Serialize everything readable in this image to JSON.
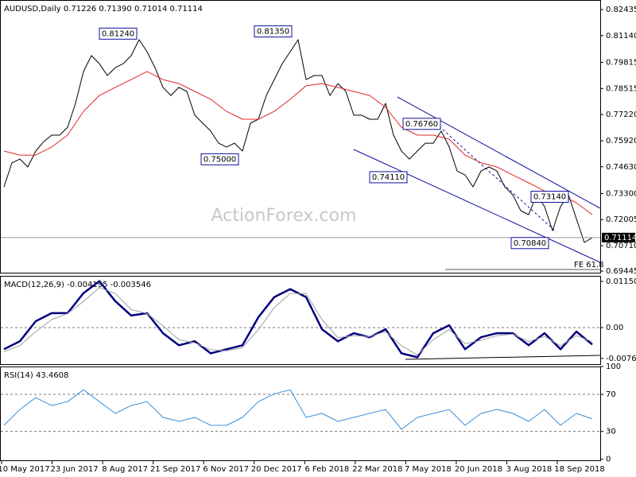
{
  "chart_data": [
    {
      "type": "line",
      "title": "AUDUSD,Daily  0.71226 0.71390 0.71014 0.71114",
      "watermark": "ActionForex.com",
      "ylim": [
        0.6937,
        0.8291
      ],
      "yticks": [
        0.82435,
        {
          "value": 0.8114,
          "label": "0.81140"
        },
        0.79815,
        0.78515,
        {
          "value": 0.7722,
          "label": "0.77220"
        },
        {
          "value": 0.7592,
          "label": "0.75920"
        },
        {
          "value": 0.7463,
          "label": "0.74630"
        },
        {
          "value": 0.733,
          "label": "0.73300"
        },
        0.72005,
        {
          "value": 0.7071,
          "label": "0.70710"
        },
        0.69445
      ],
      "last_price": {
        "value": 0.71114,
        "label": "0.71114"
      },
      "annotations": [
        {
          "value": 0.8124,
          "label": "0.81240"
        },
        {
          "value": 0.8135,
          "label": "0.81350"
        },
        {
          "value": 0.75,
          "label": "0.75000"
        },
        {
          "value": 0.7411,
          "label": "0.74110"
        },
        {
          "value": 0.7676,
          "label": "0.76760"
        },
        {
          "value": 0.7314,
          "label": "0.73140"
        },
        {
          "value": 0.7084,
          "label": "0.70840"
        }
      ],
      "note": "FE 61.8",
      "series": [
        {
          "name": "AUDUSD",
          "color": "#000000",
          "values": [
            0.7363,
            0.7482,
            0.7501,
            0.7462,
            0.7541,
            0.7588,
            0.762,
            0.762,
            0.7659,
            0.7778,
            0.7936,
            0.8015,
            0.7975,
            0.7916,
            0.7955,
            0.7975,
            0.8015,
            0.8094,
            0.8034,
            0.7955,
            0.7857,
            0.7817,
            0.7857,
            0.7837,
            0.7719,
            0.7679,
            0.764,
            0.758,
            0.7561,
            0.758,
            0.7541,
            0.7679,
            0.7699,
            0.7817,
            0.7896,
            0.7975,
            0.8034,
            0.8094,
            0.7896,
            0.7916,
            0.7916,
            0.7817,
            0.7876,
            0.7837,
            0.7719,
            0.7719,
            0.7699,
            0.7699,
            0.7778,
            0.762,
            0.7541,
            0.7501,
            0.7541,
            0.758,
            0.758,
            0.764,
            0.7561,
            0.7442,
            0.7422,
            0.7363,
            0.7442,
            0.7462,
            0.7442,
            0.7363,
            0.7324,
            0.7245,
            0.7225,
            0.7324,
            0.7265,
            0.7146,
            0.7265,
            0.7324,
            0.7205,
            0.7087,
            0.7111
          ]
        },
        {
          "name": "MA",
          "color": "#e02828",
          "values": [
            0.7541,
            0.7521,
            0.7521,
            0.7561,
            0.762,
            0.7738,
            0.7817,
            0.7857,
            0.7896,
            0.7936,
            0.7896,
            0.7876,
            0.7837,
            0.7798,
            0.7738,
            0.7699,
            0.7699,
            0.7738,
            0.7798,
            0.7865,
            0.7876,
            0.7857,
            0.7837,
            0.7817,
            0.7758,
            0.7659,
            0.762,
            0.762,
            0.76,
            0.7521,
            0.7482,
            0.7462,
            0.7422,
            0.7383,
            0.7343,
            0.7324,
            0.7284,
            0.7225
          ]
        }
      ]
    },
    {
      "type": "line",
      "title": "MACD(12,26,9) -0.004195 -0.003546",
      "ylim": [
        -0.0091,
        0.0129
      ],
      "yticks": [
        0.011508,
        {
          "value": 0,
          "label": "0.00"
        },
        -0.007694
      ],
      "levels": [
        0
      ],
      "series": [
        {
          "name": "MACD",
          "color": "#00007f",
          "width": 2.5,
          "values": [
            -0.0054,
            -0.0034,
            0.0016,
            0.0036,
            0.0036,
            0.0086,
            0.0116,
            0.0066,
            0.003,
            0.0036,
            -0.0014,
            -0.0044,
            -0.0034,
            -0.0064,
            -0.0054,
            -0.0044,
            0.0026,
            0.0076,
            0.0096,
            0.0076,
            -0.0004,
            -0.0034,
            -0.0014,
            -0.0024,
            -0.0004,
            -0.0064,
            -0.0074,
            -0.0014,
            0.0006,
            -0.0054,
            -0.0024,
            -0.0014,
            -0.0014,
            -0.0044,
            -0.0014,
            -0.0054,
            -0.001,
            -0.0042
          ]
        },
        {
          "name": "Signal",
          "color": "#a0a0a0",
          "width": 1,
          "values": [
            -0.006,
            -0.0045,
            -0.001,
            0.002,
            0.0035,
            0.0065,
            0.01,
            0.0085,
            0.0045,
            0.0035,
            0.0005,
            -0.003,
            -0.0038,
            -0.0055,
            -0.0058,
            -0.005,
            -0.0005,
            0.005,
            0.0085,
            0.0085,
            0.002,
            -0.0025,
            -0.002,
            -0.0022,
            -0.001,
            -0.0045,
            -0.0068,
            -0.003,
            -0.0005,
            -0.004,
            -0.0032,
            -0.002,
            -0.0016,
            -0.0035,
            -0.0022,
            -0.0045,
            -0.002,
            -0.0035
          ]
        }
      ]
    },
    {
      "type": "line",
      "title": "RSI(14) 43.4608",
      "ylim": [
        -2,
        100
      ],
      "yticks": [
        100,
        70,
        30,
        0
      ],
      "levels": [
        70,
        30
      ],
      "x_labels": [
        "10 May 2017",
        "23 Jun 2017",
        "8 Aug 2017",
        "21 Sep 2017",
        "6 Nov 2017",
        "20 Dec 2017",
        "6 Feb 2018",
        "22 Mar 2018",
        "7 May 2018",
        "20 Jun 2018",
        "3 Aug 2018",
        "18 Sep 2018"
      ],
      "series": [
        {
          "name": "RSI",
          "color": "#3a8fd9",
          "width": 1,
          "values": [
            36.6,
            53.6,
            66.4,
            57.9,
            62.1,
            74.9,
            62.1,
            49.4,
            57.9,
            62.1,
            45.1,
            40.9,
            45.1,
            36.6,
            36.6,
            45.1,
            62.1,
            70.6,
            74.9,
            45.1,
            49.4,
            40.9,
            45.1,
            49.4,
            53.6,
            32.3,
            45.1,
            49.4,
            53.6,
            36.6,
            49.4,
            53.6,
            49.4,
            40.9,
            53.6,
            36.6,
            49.4,
            43.5
          ]
        }
      ]
    }
  ]
}
